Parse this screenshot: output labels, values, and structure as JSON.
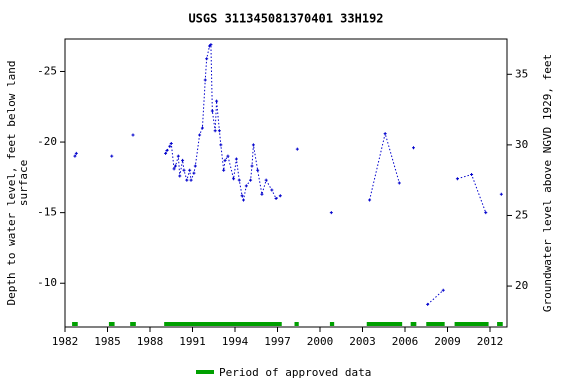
{
  "chart_data": {
    "type": "line",
    "title": "USGS 311345081370401 33H192",
    "ylabel": [
      "Depth to water level, feet below land",
      "surface"
    ],
    "y2label": "Groundwater level above NGVD 1929, feet",
    "xlim": [
      1982,
      2013.2
    ],
    "xticks": [
      1982,
      1985,
      1988,
      1991,
      1994,
      1997,
      2000,
      2003,
      2006,
      2009,
      2012
    ],
    "ylim": [
      -6.9,
      -27.3
    ],
    "yticks": [
      -25,
      -20,
      -15,
      -10
    ],
    "y2lim": [
      17.1,
      37.5
    ],
    "y2ticks": [
      20,
      25,
      30,
      35
    ],
    "x": [
      1982.7,
      1982.8,
      null,
      1985.3,
      null,
      1986.8,
      null,
      1989.1,
      1989.2,
      1989.4,
      1989.5,
      1989.7,
      1989.8,
      1990.0,
      1990.1,
      1990.3,
      1990.4,
      1990.6,
      1990.8,
      1990.9,
      1991.1,
      1991.2,
      1991.5,
      1991.7,
      1991.9,
      1992.0,
      1992.2,
      1992.3,
      1992.4,
      1992.6,
      1992.7,
      1992.9,
      1993.0,
      1993.2,
      1993.3,
      1993.5,
      1993.9,
      1994.1,
      1994.3,
      1994.5,
      1994.6,
      1994.8,
      1995.1,
      1995.2,
      1995.3,
      1995.6,
      1995.9,
      1996.2,
      1996.6,
      1996.9,
      1997.2,
      null,
      1998.4,
      null,
      2000.8,
      null,
      2003.5,
      2004.6,
      2005.6,
      null,
      2006.6,
      null,
      2007.6,
      2008.7,
      null,
      2009.7,
      2010.7,
      2011.7,
      null,
      2012.8
    ],
    "series": [
      {
        "color": "#0000cc",
        "values": [
          -19.0,
          -19.2,
          null,
          -19.0,
          null,
          -20.5,
          null,
          -19.2,
          -19.4,
          -19.7,
          -19.9,
          -18.1,
          -18.3,
          -19.0,
          -17.6,
          -18.7,
          -18.0,
          -17.3,
          -18.0,
          -17.3,
          -17.8,
          -18.3,
          -20.5,
          -21.0,
          -24.4,
          -25.9,
          -26.8,
          -26.9,
          -22.2,
          -20.8,
          -22.9,
          -20.8,
          -19.8,
          -18.0,
          -18.7,
          -19.0,
          -17.4,
          -18.8,
          -17.3,
          -16.2,
          -15.9,
          -16.9,
          -17.3,
          -18.3,
          -19.8,
          -18.0,
          -16.3,
          -17.3,
          -16.6,
          -16.0,
          -16.2,
          null,
          -19.5,
          null,
          -15.0,
          null,
          -15.9,
          -20.6,
          -17.1,
          null,
          -19.6,
          null,
          -8.5,
          -9.5,
          null,
          -17.4,
          -17.7,
          -15.0,
          null,
          -16.3
        ]
      }
    ],
    "approved": {
      "name": "Period of approved data",
      "color": "#00a000",
      "periods": [
        [
          1982.5,
          1982.9
        ],
        [
          1985.1,
          1985.5
        ],
        [
          1986.6,
          1987.0
        ],
        [
          1989.0,
          1997.3
        ],
        [
          1998.2,
          1998.5
        ],
        [
          2000.7,
          2001.0
        ],
        [
          2003.3,
          2005.8
        ],
        [
          2006.4,
          2006.8
        ],
        [
          2007.5,
          2008.8
        ],
        [
          2009.5,
          2011.9
        ],
        [
          2012.5,
          2012.9
        ]
      ]
    }
  }
}
